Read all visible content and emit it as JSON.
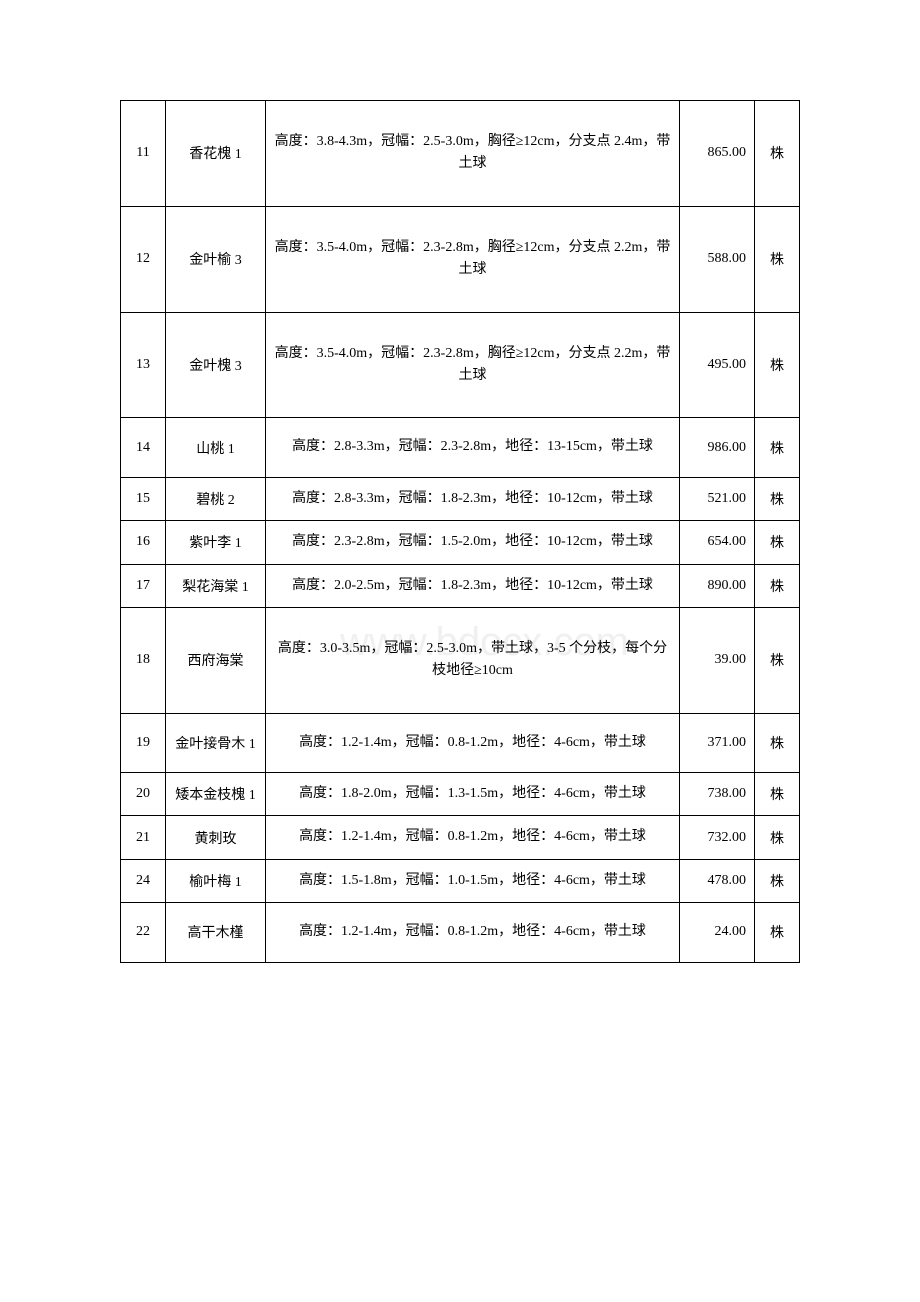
{
  "watermark_text": "www.bdocx.com",
  "table": {
    "colors": {
      "border": "#000000",
      "text": "#000000",
      "background": "#ffffff",
      "watermark": "#f0f0f0"
    },
    "font_size": 14,
    "rows": [
      {
        "id": "11",
        "name": "香花槐 1",
        "desc": "高度：3.8-4.3m，冠幅：2.5-3.0m，胸径≥12cm，分支点 2.4m，带土球",
        "price": "865.00",
        "unit": "株",
        "height": "tall"
      },
      {
        "id": "12",
        "name": "金叶榆 3",
        "desc": "高度：3.5-4.0m，冠幅：2.3-2.8m，胸径≥12cm，分支点 2.2m，带土球",
        "price": "588.00",
        "unit": "株",
        "height": "tall"
      },
      {
        "id": "13",
        "name": "金叶槐 3",
        "desc": "高度：3.5-4.0m，冠幅：2.3-2.8m，胸径≥12cm，分支点 2.2m，带土球",
        "price": "495.00",
        "unit": "株",
        "height": "tall"
      },
      {
        "id": "14",
        "name": "山桃 1",
        "desc": "高度：2.8-3.3m，冠幅：2.3-2.8m，地径：13-15cm，带土球",
        "price": "986.00",
        "unit": "株",
        "height": "med"
      },
      {
        "id": "15",
        "name": "碧桃 2",
        "desc": "高度：2.8-3.3m，冠幅：1.8-2.3m，地径：10-12cm，带土球",
        "price": "521.00",
        "unit": "株",
        "height": "short"
      },
      {
        "id": "16",
        "name": "紫叶李 1",
        "desc": "高度：2.3-2.8m，冠幅：1.5-2.0m，地径：10-12cm，带土球",
        "price": "654.00",
        "unit": "株",
        "height": "short"
      },
      {
        "id": "17",
        "name": "梨花海棠 1",
        "desc": "高度：2.0-2.5m，冠幅：1.8-2.3m，地径：10-12cm，带土球",
        "price": "890.00",
        "unit": "株",
        "height": "short"
      },
      {
        "id": "18",
        "name": "西府海棠",
        "desc": "高度：3.0-3.5m，冠幅：2.5-3.0m，带土球，3-5 个分枝，每个分枝地径≥10cm",
        "price": "39.00",
        "unit": "株",
        "height": "tall"
      },
      {
        "id": "19",
        "name": "金叶接骨木 1",
        "desc": "高度：1.2-1.4m，冠幅：0.8-1.2m，地径：4-6cm，带土球",
        "price": "371.00",
        "unit": "株",
        "height": "med"
      },
      {
        "id": "20",
        "name": "矮本金枝槐 1",
        "desc": "高度：1.8-2.0m，冠幅：1.3-1.5m，地径：4-6cm，带土球",
        "price": "738.00",
        "unit": "株",
        "height": "short"
      },
      {
        "id": "21",
        "name": "黄刺玫",
        "desc": "高度：1.2-1.4m，冠幅：0.8-1.2m，地径：4-6cm，带土球",
        "price": "732.00",
        "unit": "株",
        "height": "short"
      },
      {
        "id": "24",
        "name": "榆叶梅 1",
        "desc": "高度：1.5-1.8m，冠幅：1.0-1.5m，地径：4-6cm，带土球",
        "price": "478.00",
        "unit": "株",
        "height": "short"
      },
      {
        "id": "22",
        "name": "高干木槿",
        "desc": "高度：1.2-1.4m，冠幅：0.8-1.2m，地径：4-6cm，带土球",
        "price": "24.00",
        "unit": "株",
        "height": "med"
      }
    ]
  }
}
